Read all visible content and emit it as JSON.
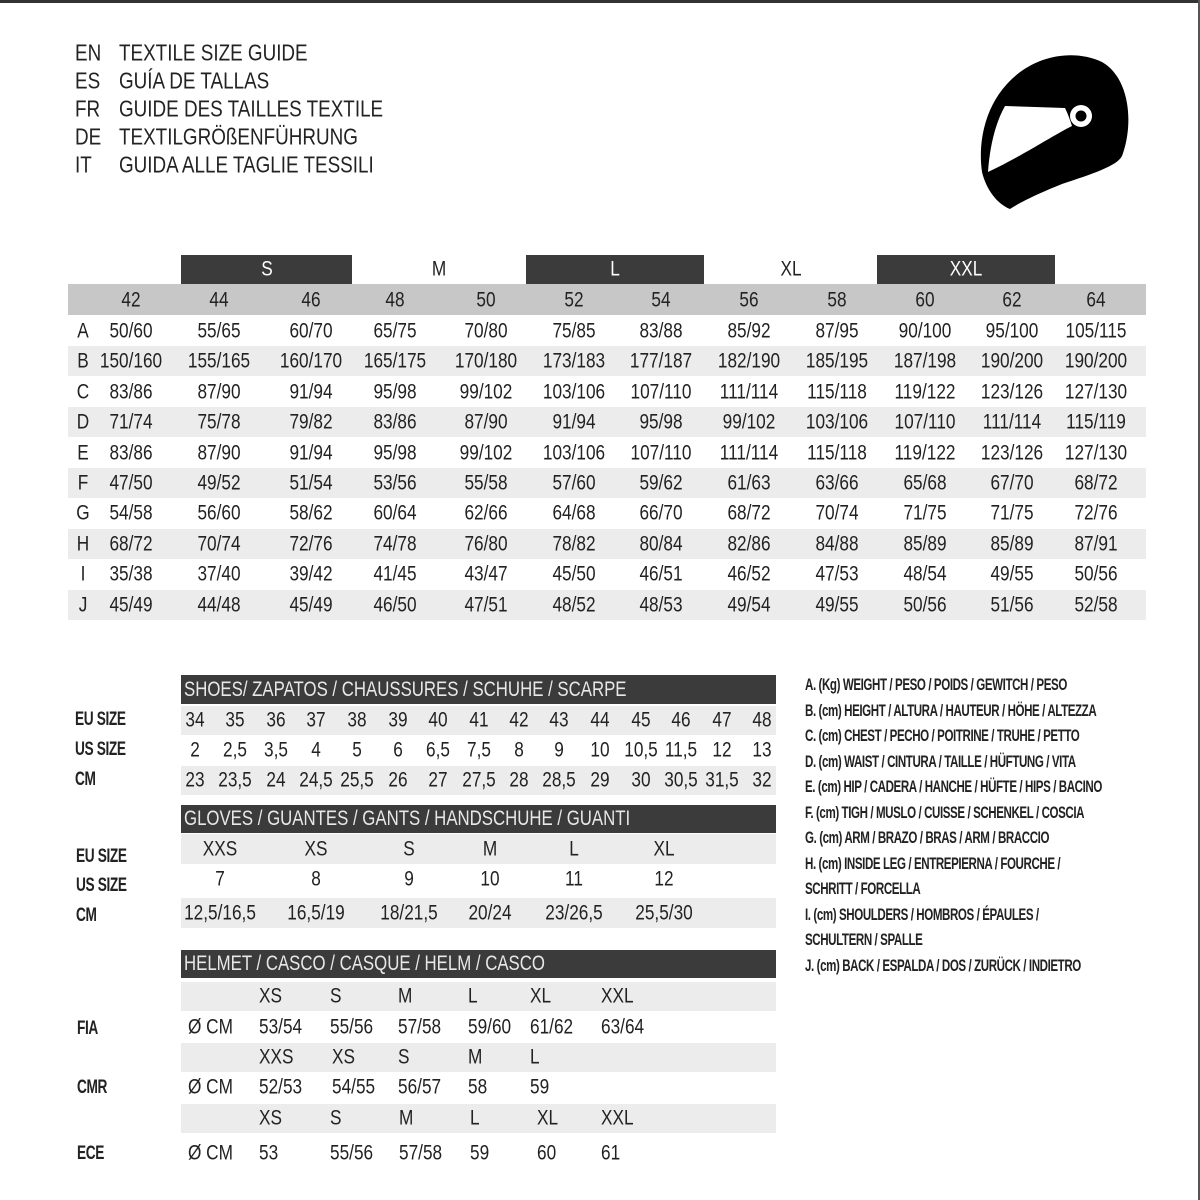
{
  "header": {
    "titles": [
      {
        "lang": "EN",
        "text": "TEXTILE SIZE GUIDE"
      },
      {
        "lang": "ES",
        "text": "GUÍA DE TALLAS"
      },
      {
        "lang": "FR",
        "text": "GUIDE DES TAILLES TEXTILE"
      },
      {
        "lang": "DE",
        "text": "TEXTILGRÖßENFÜHRUNG"
      },
      {
        "lang": "IT",
        "text": "GUIDA ALLE TAGLIE TESSILI"
      }
    ],
    "icon": "helmet-icon"
  },
  "textile": {
    "size_groups": [
      "S",
      "M",
      "L",
      "XL",
      "XXL"
    ],
    "sizes": [
      "42",
      "44",
      "46",
      "48",
      "50",
      "52",
      "54",
      "56",
      "58",
      "60",
      "62",
      "64"
    ],
    "rows": [
      {
        "label": "A",
        "values": [
          "50/60",
          "55/65",
          "60/70",
          "65/75",
          "70/80",
          "75/85",
          "83/88",
          "85/92",
          "87/95",
          "90/100",
          "95/100",
          "105/115"
        ]
      },
      {
        "label": "B",
        "values": [
          "150/160",
          "155/165",
          "160/170",
          "165/175",
          "170/180",
          "173/183",
          "177/187",
          "182/190",
          "185/195",
          "187/198",
          "190/200",
          "190/200"
        ]
      },
      {
        "label": "C",
        "values": [
          "83/86",
          "87/90",
          "91/94",
          "95/98",
          "99/102",
          "103/106",
          "107/110",
          "111/114",
          "115/118",
          "119/122",
          "123/126",
          "127/130"
        ]
      },
      {
        "label": "D",
        "values": [
          "71/74",
          "75/78",
          "79/82",
          "83/86",
          "87/90",
          "91/94",
          "95/98",
          "99/102",
          "103/106",
          "107/110",
          "111/114",
          "115/119"
        ]
      },
      {
        "label": "E",
        "values": [
          "83/86",
          "87/90",
          "91/94",
          "95/98",
          "99/102",
          "103/106",
          "107/110",
          "111/114",
          "115/118",
          "119/122",
          "123/126",
          "127/130"
        ]
      },
      {
        "label": "F",
        "values": [
          "47/50",
          "49/52",
          "51/54",
          "53/56",
          "55/58",
          "57/60",
          "59/62",
          "61/63",
          "63/66",
          "65/68",
          "67/70",
          "68/72"
        ]
      },
      {
        "label": "G",
        "values": [
          "54/58",
          "56/60",
          "58/62",
          "60/64",
          "62/66",
          "64/68",
          "66/70",
          "68/72",
          "70/74",
          "71/75",
          "71/75",
          "72/76"
        ]
      },
      {
        "label": "H",
        "values": [
          "68/72",
          "70/74",
          "72/76",
          "74/78",
          "76/80",
          "78/82",
          "80/84",
          "82/86",
          "84/88",
          "85/89",
          "85/89",
          "87/91"
        ]
      },
      {
        "label": "I",
        "values": [
          "35/38",
          "37/40",
          "39/42",
          "41/45",
          "43/47",
          "45/50",
          "46/51",
          "46/52",
          "47/53",
          "48/54",
          "49/55",
          "50/56"
        ]
      },
      {
        "label": "J",
        "values": [
          "45/49",
          "44/48",
          "45/49",
          "46/50",
          "47/51",
          "48/52",
          "48/53",
          "49/54",
          "49/55",
          "50/56",
          "51/56",
          "52/58"
        ]
      }
    ]
  },
  "shoes": {
    "title": "SHOES/ ZAPATOS / CHAUSSURES / SCHUHE / SCARPE",
    "rows": [
      {
        "label": "EU SIZE",
        "values": [
          "34",
          "35",
          "36",
          "37",
          "38",
          "39",
          "40",
          "41",
          "42",
          "43",
          "44",
          "45",
          "46",
          "47",
          "48"
        ]
      },
      {
        "label": "US SIZE",
        "values": [
          "2",
          "2,5",
          "3,5",
          "4",
          "5",
          "6",
          "6,5",
          "7,5",
          "8",
          "9",
          "10",
          "10,5",
          "11,5",
          "12",
          "13"
        ]
      },
      {
        "label": "CM",
        "values": [
          "23",
          "23,5",
          "24",
          "24,5",
          "25,5",
          "26",
          "27",
          "27,5",
          "28",
          "28,5",
          "29",
          "30",
          "30,5",
          "31,5",
          "32"
        ]
      }
    ]
  },
  "gloves": {
    "title": "GLOVES / GUANTES / GANTS / HANDSCHUHE / GUANTI",
    "rows": [
      {
        "label": "EU SIZE",
        "values": [
          "XXS",
          "XS",
          "S",
          "M",
          "L",
          "XL"
        ]
      },
      {
        "label": "US SIZE",
        "values": [
          "7",
          "8",
          "9",
          "10",
          "11",
          "12"
        ]
      },
      {
        "label": "CM",
        "values": [
          "12,5/16,5",
          "16,5/19",
          "18/21,5",
          "20/24",
          "23/26,5",
          "25,5/30"
        ]
      }
    ]
  },
  "helmet": {
    "title": "HELMET / CASCO / CASQUE / HELM / CASCO",
    "unit": "Ø CM",
    "standards": [
      {
        "label": "FIA",
        "sizes": [
          "XS",
          "S",
          "M",
          "L",
          "XL",
          "XXL"
        ],
        "values": [
          "53/54",
          "55/56",
          "57/58",
          "59/60",
          "61/62",
          "63/64"
        ]
      },
      {
        "label": "CMR",
        "sizes": [
          "XXS",
          "XS",
          "S",
          "M",
          "L"
        ],
        "values": [
          "52/53",
          "54/55",
          "56/57",
          "58",
          "59"
        ]
      },
      {
        "label": "ECE",
        "sizes": [
          "XS",
          "S",
          "M",
          "L",
          "XL",
          "XXL"
        ],
        "values": [
          "53",
          "55/56",
          "57/58",
          "59",
          "60",
          "61"
        ]
      }
    ]
  },
  "legend": [
    "A. (Kg) WEIGHT / PESO / POIDS / GEWITCH / PESO",
    "B. (cm) HEIGHT / ALTURA / HAUTEUR / HÖHE / ALTEZZA",
    "C. (cm) CHEST / PECHO / POITRINE / TRUHE / PETTO",
    "D. (cm) WAIST / CINTURA / TAILLE / HÜFTUNG / VITA",
    "E. (cm) HIP / CADERA / HANCHE / HÜFTE / HIPS /  BACINO",
    "F.  (cm) TIGH / MUSLO / CUISSE / SCHENKEL / COSCIA",
    "G. (cm) ARM  / BRAZO / BRAS / ARM / BRACCIO",
    "H. (cm) INSIDE LEG / ENTREPIERNA / FOURCHE /",
    "SCHRITT / FORCELLA",
    "I.  (cm) SHOULDERS / HOMBROS / ÉPAULES /",
    "SCHULTERN / SPALLE",
    "J. (cm) BACK / ESPALDA / DOS / ZURÜCK / INDIETRO"
  ],
  "colors": {
    "bar_dark": "#3b3b3b",
    "header_gray": "#c7c7c7",
    "stripe": "#ececec",
    "text": "#222222"
  }
}
